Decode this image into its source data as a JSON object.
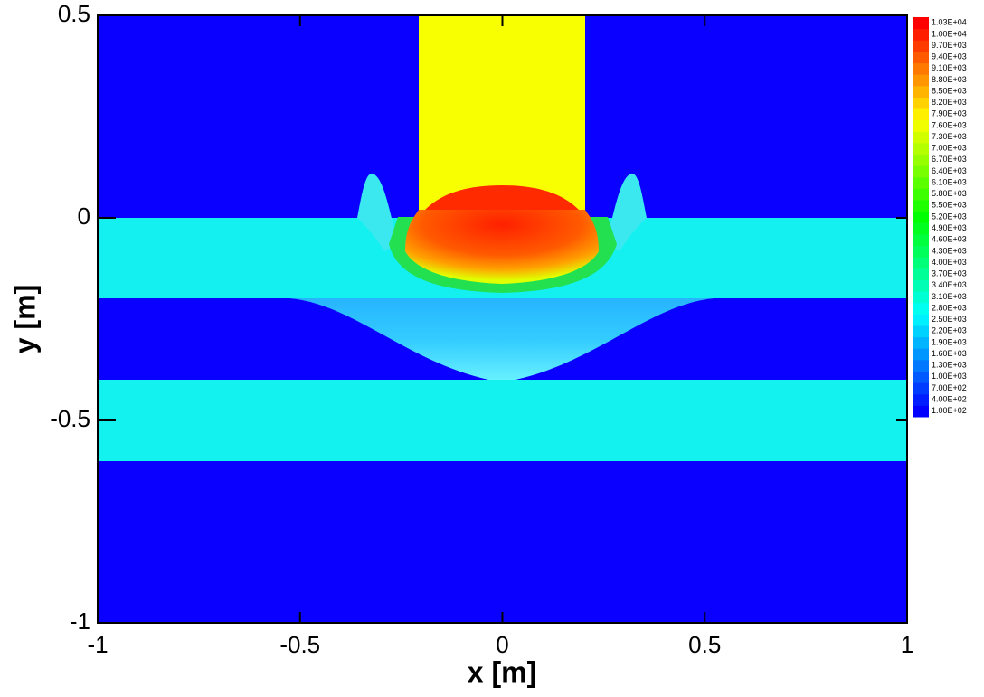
{
  "chart_data": {
    "type": "contour",
    "x_label": "x [m]",
    "y_label": "y [m]",
    "xlim": [
      -1,
      1
    ],
    "ylim": [
      -1,
      0.5
    ],
    "xticks": [
      -1,
      -0.5,
      0,
      0.5,
      1
    ],
    "yticks": [
      -1,
      -0.5,
      0,
      0.5
    ],
    "colorbar": {
      "colors": [
        "#0000ff",
        "#00ffff",
        "#00ff00",
        "#ffff00",
        "#ff0000"
      ],
      "levels": [
        {
          "value": 100,
          "label": "1.00E+02"
        },
        {
          "value": 400,
          "label": "4.00E+02"
        },
        {
          "value": 700,
          "label": "7.00E+02"
        },
        {
          "value": 1000,
          "label": "1.00E+03"
        },
        {
          "value": 1300,
          "label": "1.30E+03"
        },
        {
          "value": 1600,
          "label": "1.60E+03"
        },
        {
          "value": 1900,
          "label": "1.90E+03"
        },
        {
          "value": 2200,
          "label": "2.20E+03"
        },
        {
          "value": 2500,
          "label": "2.50E+03"
        },
        {
          "value": 2800,
          "label": "2.80E+03"
        },
        {
          "value": 3100,
          "label": "3.10E+03"
        },
        {
          "value": 3400,
          "label": "3.40E+03"
        },
        {
          "value": 3700,
          "label": "3.70E+03"
        },
        {
          "value": 4000,
          "label": "4.00E+03"
        },
        {
          "value": 4300,
          "label": "4.30E+03"
        },
        {
          "value": 4600,
          "label": "4.60E+03"
        },
        {
          "value": 4900,
          "label": "4.90E+03"
        },
        {
          "value": 5200,
          "label": "5.20E+03"
        },
        {
          "value": 5500,
          "label": "5.50E+03"
        },
        {
          "value": 5800,
          "label": "5.80E+03"
        },
        {
          "value": 6100,
          "label": "6.10E+03"
        },
        {
          "value": 6400,
          "label": "6.40E+03"
        },
        {
          "value": 6700,
          "label": "6.70E+03"
        },
        {
          "value": 7000,
          "label": "7.00E+03"
        },
        {
          "value": 7300,
          "label": "7.30E+03"
        },
        {
          "value": 7600,
          "label": "7.60E+03"
        },
        {
          "value": 7900,
          "label": "7.90E+03"
        },
        {
          "value": 8200,
          "label": "8.20E+03"
        },
        {
          "value": 8500,
          "label": "8.50E+03"
        },
        {
          "value": 8800,
          "label": "8.80E+03"
        },
        {
          "value": 9100,
          "label": "9.10E+03"
        },
        {
          "value": 9400,
          "label": "9.40E+03"
        },
        {
          "value": 9700,
          "label": "9.70E+03"
        },
        {
          "value": 10000,
          "label": "1.00E+04"
        },
        {
          "value": 10300,
          "label": "1.03E+04"
        }
      ]
    }
  }
}
